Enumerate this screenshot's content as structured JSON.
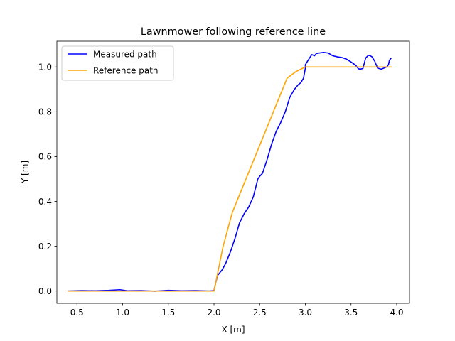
{
  "chart_data": {
    "type": "line",
    "title": "Lawnmower following reference line",
    "xlabel": "X [m]",
    "ylabel": "Y [m]",
    "xlim": [
      0.28,
      4.14
    ],
    "ylim": [
      -0.055,
      1.115
    ],
    "xticks": [
      0.5,
      1.0,
      1.5,
      2.0,
      2.5,
      3.0,
      3.5,
      4.0
    ],
    "xtick_labels": [
      "0.5",
      "1.0",
      "1.5",
      "2.0",
      "2.5",
      "3.0",
      "3.5",
      "4.0"
    ],
    "yticks": [
      0.0,
      0.2,
      0.4,
      0.6,
      0.8,
      1.0
    ],
    "ytick_labels": [
      "0.0",
      "0.2",
      "0.4",
      "0.6",
      "0.8",
      "1.0"
    ],
    "grid": false,
    "legend_position": "upper-left",
    "series": [
      {
        "name": "Measured path",
        "color": "#0000ff",
        "x": [
          0.4,
          0.55,
          0.7,
          0.85,
          0.97,
          1.05,
          1.2,
          1.35,
          1.5,
          1.65,
          1.8,
          1.95,
          2.0,
          2.02,
          2.04,
          2.06,
          2.09,
          2.13,
          2.18,
          2.23,
          2.28,
          2.33,
          2.38,
          2.43,
          2.48,
          2.5,
          2.53,
          2.58,
          2.63,
          2.68,
          2.73,
          2.78,
          2.83,
          2.88,
          2.92,
          2.95,
          2.98,
          3.0,
          3.0,
          3.03,
          3.07,
          3.1,
          3.12,
          3.15,
          3.2,
          3.25,
          3.3,
          3.35,
          3.4,
          3.45,
          3.5,
          3.55,
          3.58,
          3.6,
          3.63,
          3.66,
          3.69,
          3.71,
          3.73,
          3.76,
          3.79,
          3.83,
          3.86,
          3.89,
          3.91,
          3.92,
          3.93,
          3.94
        ],
        "y": [
          0.0,
          0.002,
          0.001,
          0.003,
          0.006,
          0.001,
          0.002,
          -0.001,
          0.003,
          0.001,
          0.002,
          0.0,
          0.002,
          0.04,
          0.07,
          0.08,
          0.095,
          0.125,
          0.175,
          0.235,
          0.305,
          0.345,
          0.375,
          0.42,
          0.5,
          0.512,
          0.525,
          0.585,
          0.655,
          0.712,
          0.752,
          0.8,
          0.865,
          0.9,
          0.92,
          0.93,
          0.95,
          0.995,
          1.01,
          1.03,
          1.055,
          1.05,
          1.06,
          1.062,
          1.065,
          1.062,
          1.05,
          1.045,
          1.042,
          1.035,
          1.022,
          1.008,
          0.992,
          0.99,
          0.993,
          1.04,
          1.052,
          1.05,
          1.045,
          1.025,
          0.995,
          0.99,
          0.995,
          1.0,
          1.01,
          1.03,
          1.035,
          1.04
        ]
      },
      {
        "name": "Reference path",
        "color": "#ffa500",
        "x": [
          0.4,
          0.55,
          0.7,
          0.85,
          1.0,
          1.15,
          1.3,
          1.45,
          1.6,
          1.75,
          1.9,
          2.0,
          2.05,
          2.1,
          2.2,
          2.3,
          2.4,
          2.5,
          2.6,
          2.7,
          2.8,
          2.9,
          3.0,
          3.2,
          3.5,
          3.8,
          3.95
        ],
        "y": [
          0.0,
          0.0,
          0.0,
          0.0,
          0.0,
          0.0,
          0.0,
          0.0,
          0.0,
          0.0,
          0.0,
          0.0,
          0.1,
          0.2,
          0.35,
          0.45,
          0.55,
          0.65,
          0.75,
          0.85,
          0.95,
          0.98,
          1.0,
          1.0,
          1.0,
          1.0,
          1.0
        ]
      }
    ]
  }
}
